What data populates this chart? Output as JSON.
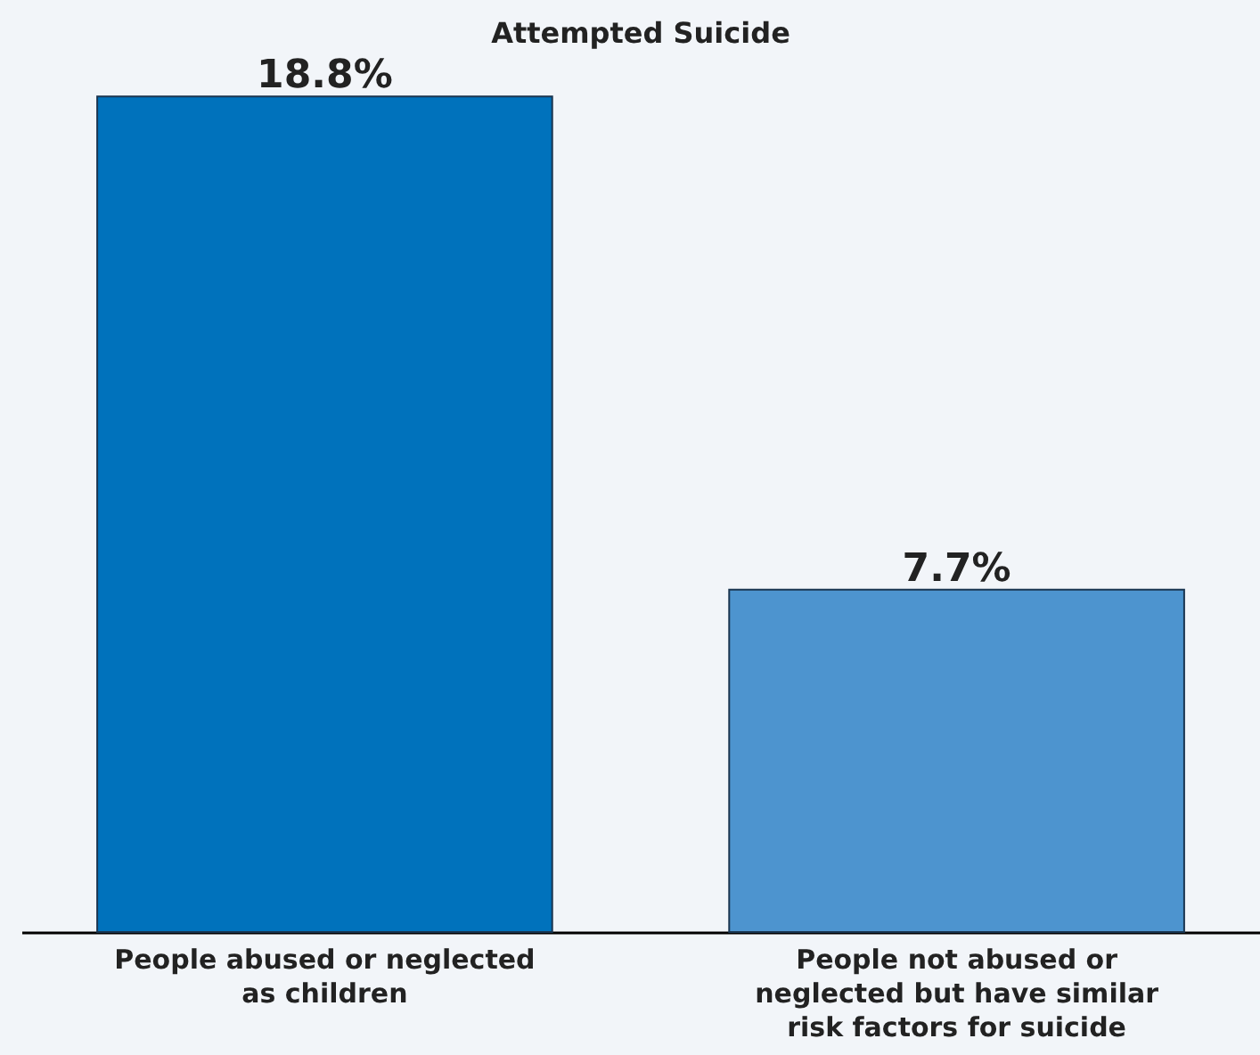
{
  "chart_data": {
    "type": "bar",
    "title": "Attempted Suicide",
    "categories": [
      "People abused or neglected as children",
      "People not abused or neglected but have similar risk factors for suicide"
    ],
    "values": [
      18.8,
      7.7
    ],
    "colors": [
      "#0072bc",
      "#4d94cf"
    ],
    "value_labels": [
      "18.8%",
      "7.7%"
    ],
    "grid": false
  }
}
